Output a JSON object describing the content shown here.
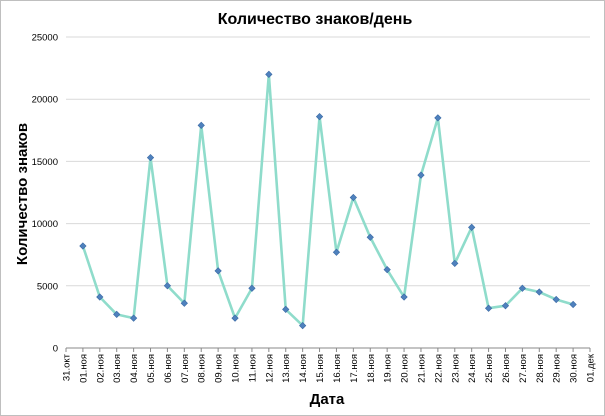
{
  "chart_data": {
    "type": "line",
    "title": "Количество знаков/день",
    "xlabel": "Дата",
    "ylabel": "Количество знаков",
    "ylim": [
      0,
      25000
    ],
    "yticks": [
      "0",
      "5000",
      "10000",
      "15000",
      "20000",
      "25000"
    ],
    "ytick_values": [
      0,
      5000,
      10000,
      15000,
      20000,
      25000
    ],
    "grid": "horizontal",
    "legend": "none",
    "colors": {
      "line": "#8fdccb",
      "marker": "#4f81bd"
    },
    "categories": [
      "31.окт",
      "01.ноя",
      "02.ноя",
      "03.ноя",
      "04.ноя",
      "05.ноя",
      "06.ноя",
      "07.ноя",
      "08.ноя",
      "09.ноя",
      "10.ноя",
      "11.ноя",
      "12.ноя",
      "13.ноя",
      "14.ноя",
      "15.ноя",
      "16.ноя",
      "17.ноя",
      "18.ноя",
      "19.ноя",
      "20.ноя",
      "21.ноя",
      "22.ноя",
      "23.ноя",
      "24.ноя",
      "25.ноя",
      "26.ноя",
      "27.ноя",
      "28.ноя",
      "29.ноя",
      "30.ноя",
      "01.дек"
    ],
    "series": [
      {
        "values": [
          null,
          8200,
          4100,
          2700,
          2400,
          15300,
          5000,
          3600,
          17900,
          6200,
          2400,
          4800,
          22000,
          3100,
          1800,
          18600,
          7700,
          12100,
          8900,
          6300,
          4100,
          13900,
          18500,
          6800,
          9700,
          3200,
          3400,
          4800,
          4500,
          3900,
          3500,
          null
        ]
      }
    ]
  }
}
